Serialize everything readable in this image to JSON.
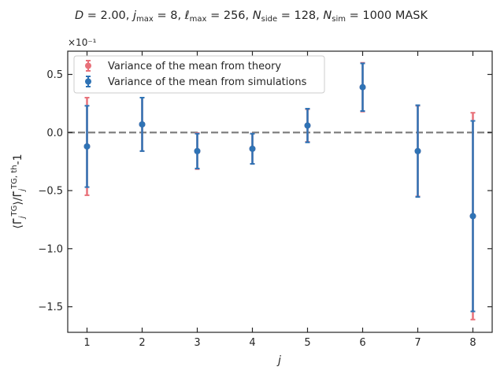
{
  "chart_data": {
    "type": "scatter",
    "title": "D = 2.00,  j_max = 8,  ℓ_max = 256,  N_side = 128,  N_sim = 1000 MASK",
    "title_parts": {
      "D_val": "2.00",
      "jmax_val": "8",
      "lmax_val": "256",
      "nside_val": "128",
      "nsim_val": "1000",
      "suffix": "MASK"
    },
    "xlabel": "j",
    "ylabel": "⟨Γ̃_j^{TG}⟩/Γ̃_j^{TG, th}-1",
    "y_scale_note": "×10⁻¹",
    "x": [
      1,
      2,
      3,
      4,
      5,
      6,
      7,
      8
    ],
    "xlim": [
      0.65,
      8.35
    ],
    "ylim": [
      -1.72,
      0.7
    ],
    "x_ticks": [
      1,
      2,
      3,
      4,
      5,
      6,
      7,
      8
    ],
    "y_ticks": [
      -1.5,
      -1.0,
      -0.5,
      0.0,
      0.5
    ],
    "y_tick_labels": [
      "−1.5",
      "−1.0",
      "−0.5",
      "0.0",
      "0.5"
    ],
    "reference_line": 0.0,
    "grid": false,
    "legend_position": "top-left",
    "series": [
      {
        "name": "Variance of the mean from theory",
        "color": "#e8717a",
        "values": [
          -0.12,
          0.07,
          -0.16,
          -0.14,
          0.06,
          0.39,
          -0.16,
          -0.72
        ],
        "errors": [
          0.42,
          0.23,
          0.155,
          0.13,
          0.14,
          0.21,
          0.39,
          0.89
        ]
      },
      {
        "name": "Variance of the mean from simulations",
        "color": "#2f73b5",
        "values": [
          -0.12,
          0.07,
          -0.16,
          -0.14,
          0.06,
          0.39,
          -0.16,
          -0.72
        ],
        "errors": [
          0.35,
          0.23,
          0.15,
          0.13,
          0.145,
          0.205,
          0.395,
          0.82
        ]
      }
    ]
  }
}
